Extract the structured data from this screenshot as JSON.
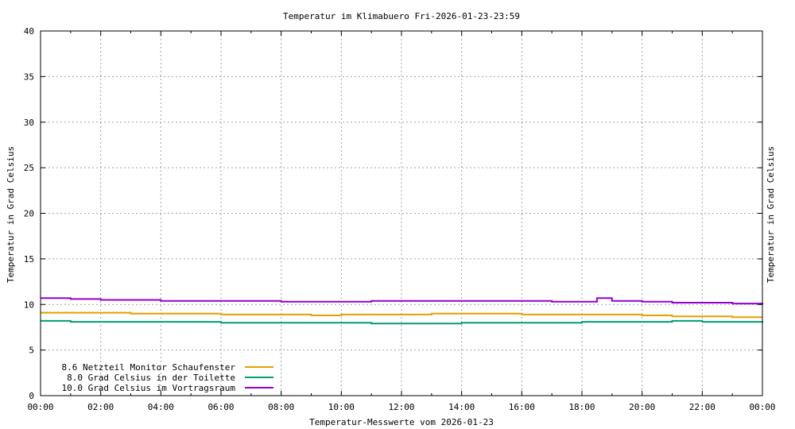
{
  "chart_data": {
    "type": "line",
    "title": "Temperatur im Klimabuero Fri-2026-01-23-23:59",
    "xlabel": "Temperatur-Messwerte vom 2026-01-23",
    "ylabel": "Temperatur in Grad Celsius",
    "ylabel_right": "Temperatur in Grad Celsius",
    "xlim": [
      "00:00",
      "24:00"
    ],
    "ylim": [
      0,
      40
    ],
    "grid": true,
    "legend_position": "bottom-left",
    "x_ticks": [
      "00:00",
      "02:00",
      "04:00",
      "06:00",
      "08:00",
      "10:00",
      "12:00",
      "14:00",
      "16:00",
      "18:00",
      "20:00",
      "22:00",
      "00:00"
    ],
    "y_ticks": [
      "0",
      "5",
      "10",
      "15",
      "20",
      "25",
      "30",
      "35",
      "40"
    ],
    "x": [
      "00:00",
      "01:00",
      "02:00",
      "03:00",
      "04:00",
      "05:00",
      "06:00",
      "07:00",
      "08:00",
      "09:00",
      "10:00",
      "11:00",
      "12:00",
      "13:00",
      "14:00",
      "15:00",
      "16:00",
      "17:00",
      "18:00",
      "18:30",
      "19:00",
      "20:00",
      "21:00",
      "22:00",
      "23:00",
      "24:00"
    ],
    "series": [
      {
        "name": "8.6 Netzteil Monitor Schaufenster",
        "color": "#e69f00",
        "values": [
          9.1,
          9.1,
          9.1,
          9.0,
          9.0,
          9.0,
          8.9,
          8.9,
          8.9,
          8.8,
          8.9,
          8.9,
          8.9,
          9.0,
          9.0,
          9.0,
          8.9,
          8.9,
          8.9,
          8.9,
          8.9,
          8.8,
          8.7,
          8.7,
          8.6,
          8.6
        ]
      },
      {
        "name": "8.0 Grad Celsius in der Toilette",
        "color": "#009e73",
        "values": [
          8.2,
          8.1,
          8.1,
          8.1,
          8.1,
          8.1,
          8.0,
          8.0,
          8.0,
          8.0,
          8.0,
          7.9,
          7.9,
          7.9,
          8.0,
          8.0,
          8.0,
          8.0,
          8.1,
          8.1,
          8.1,
          8.1,
          8.2,
          8.1,
          8.1,
          8.0
        ]
      },
      {
        "name": "10.0 Grad Celsius im Vortragsraum",
        "color": "#9400d3",
        "values": [
          10.7,
          10.6,
          10.5,
          10.5,
          10.4,
          10.4,
          10.4,
          10.4,
          10.3,
          10.3,
          10.3,
          10.4,
          10.4,
          10.4,
          10.4,
          10.4,
          10.4,
          10.3,
          10.3,
          10.7,
          10.4,
          10.3,
          10.2,
          10.2,
          10.1,
          10.0
        ]
      }
    ]
  }
}
